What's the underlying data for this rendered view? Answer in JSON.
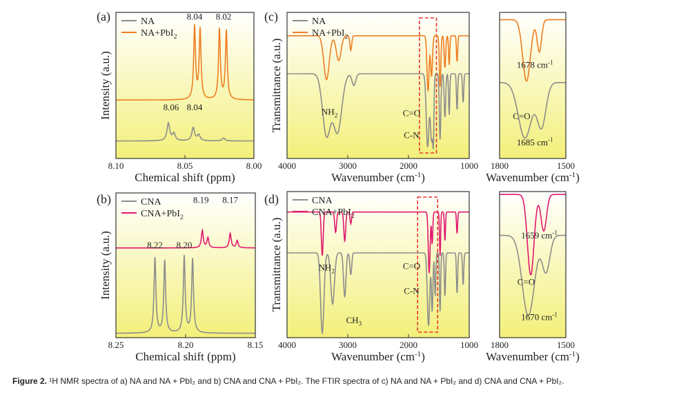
{
  "figure": {
    "caption_label": "Figure 2.",
    "caption_text": "¹H NMR spectra of a) NA and NA + PbI₂ and b) CNA and CNA + PbI₂. The FTIR spectra of c) NA and NA + PbI₂ and d) CNA and CNA + PbI₂."
  },
  "colors": {
    "orange": "#EE7D22",
    "magenta": "#E0186E",
    "gray": "#8C8C8C",
    "grad_top": "#FFFFFF",
    "grad_bottom": "#F3F07A",
    "box": "#E8332A"
  },
  "chart_data": [
    {
      "id": "a",
      "panel_label": "(a)",
      "type": "line",
      "xlabel": "Chemical shift (ppm)",
      "ylabel": "Intensity (a.u.)",
      "xlim": [
        8.1,
        8.0
      ],
      "xticks": [
        "8.10",
        "8.05",
        "8.00"
      ],
      "series": [
        {
          "name": "NA",
          "color": "#8C8C8C",
          "baseline": 0.12,
          "peaks": [
            {
              "x": 8.062,
              "h": 0.12,
              "w": 0.0012
            },
            {
              "x": 8.058,
              "h": 0.05,
              "w": 0.0012
            },
            {
              "x": 8.044,
              "h": 0.09,
              "w": 0.0012
            },
            {
              "x": 8.04,
              "h": 0.04,
              "w": 0.0012
            },
            {
              "x": 8.022,
              "h": 0.02,
              "w": 0.0012
            }
          ]
        },
        {
          "name": "NA+PbI2",
          "color": "#EE7D22",
          "baseline": 0.4,
          "peaks": [
            {
              "x": 8.043,
              "h": 0.5,
              "w": 0.0008
            },
            {
              "x": 8.039,
              "h": 0.48,
              "w": 0.0008
            },
            {
              "x": 8.025,
              "h": 0.48,
              "w": 0.0008
            },
            {
              "x": 8.02,
              "h": 0.47,
              "w": 0.0008
            }
          ]
        }
      ],
      "annotations": [
        {
          "text": "8.04",
          "x": 8.043,
          "y": 0.95
        },
        {
          "text": "8.02",
          "x": 8.022,
          "y": 0.95
        },
        {
          "text": "8.06",
          "x": 8.06,
          "y": 0.33
        },
        {
          "text": "8.04",
          "x": 8.043,
          "y": 0.33
        }
      ],
      "legend": [
        {
          "name": "NA",
          "label": "NA",
          "color": "#8C8C8C"
        },
        {
          "name": "NA+PbI2",
          "label": "NA+PbI",
          "sub": "2",
          "color": "#EE7D22"
        }
      ]
    },
    {
      "id": "b",
      "panel_label": "(b)",
      "type": "line",
      "xlabel": "Chemical shift (ppm)",
      "ylabel": "Intensity (a.u.)",
      "xlim": [
        8.25,
        8.15
      ],
      "xticks": [
        "8.25",
        "8.20",
        "8.15"
      ],
      "series": [
        {
          "name": "CNA",
          "color": "#8C8C8C",
          "baseline": 0.03,
          "peaks": [
            {
              "x": 8.222,
              "h": 0.52,
              "w": 0.0008
            },
            {
              "x": 8.215,
              "h": 0.5,
              "w": 0.0008
            },
            {
              "x": 8.201,
              "h": 0.53,
              "w": 0.0008
            },
            {
              "x": 8.195,
              "h": 0.51,
              "w": 0.0008
            }
          ]
        },
        {
          "name": "CNA+PbI2",
          "color": "#E0186E",
          "baseline": 0.62,
          "peaks": [
            {
              "x": 8.188,
              "h": 0.12,
              "w": 0.0008
            },
            {
              "x": 8.184,
              "h": 0.07,
              "w": 0.0008
            },
            {
              "x": 8.168,
              "h": 0.1,
              "w": 0.0008
            },
            {
              "x": 8.163,
              "h": 0.05,
              "w": 0.0008
            }
          ]
        }
      ],
      "annotations": [
        {
          "text": "8.19",
          "x": 8.189,
          "y": 0.93
        },
        {
          "text": "8.17",
          "x": 8.168,
          "y": 0.93
        },
        {
          "text": "8.22",
          "x": 8.222,
          "y": 0.62
        },
        {
          "text": "8.20",
          "x": 8.201,
          "y": 0.62
        }
      ],
      "legend": [
        {
          "name": "CNA",
          "label": "CNA",
          "color": "#8C8C8C"
        },
        {
          "name": "CNA+PbI2",
          "label": "CNA+PbI",
          "sub": "2",
          "color": "#E0186E"
        }
      ]
    },
    {
      "id": "c",
      "panel_label": "(c)",
      "type": "line",
      "xlabel": "Wavenumber (cm",
      "xlabel_sup": "-1",
      "xlabel_end": ")",
      "ylabel": "Transmittance (a.u.)",
      "xlim": [
        4000,
        1000
      ],
      "xticks": [
        "4000",
        "3000",
        "2000",
        "1000"
      ],
      "series": [
        {
          "name": "NA",
          "color": "#8C8C8C",
          "baseline": 0.58,
          "bands": [
            {
              "x": 3350,
              "d": 0.42,
              "w": 130
            },
            {
              "x": 3170,
              "d": 0.4,
              "w": 140
            },
            {
              "x": 2900,
              "d": 0.08,
              "w": 60
            },
            {
              "x": 1685,
              "d": 0.5,
              "w": 45
            },
            {
              "x": 1620,
              "d": 0.45,
              "w": 40
            },
            {
              "x": 1590,
              "d": 0.35,
              "w": 20
            },
            {
              "x": 1480,
              "d": 0.45,
              "w": 25
            },
            {
              "x": 1400,
              "d": 0.3,
              "w": 25
            },
            {
              "x": 1330,
              "d": 0.28,
              "w": 20
            },
            {
              "x": 1200,
              "d": 0.25,
              "w": 20
            },
            {
              "x": 1100,
              "d": 0.2,
              "w": 20
            }
          ]
        },
        {
          "name": "NA+PbI2",
          "color": "#EE7D22",
          "baseline": 0.84,
          "bands": [
            {
              "x": 3350,
              "d": 0.3,
              "w": 90
            },
            {
              "x": 3150,
              "d": 0.17,
              "w": 80
            },
            {
              "x": 2950,
              "d": 0.1,
              "w": 30
            },
            {
              "x": 1678,
              "d": 0.38,
              "w": 35
            },
            {
              "x": 1620,
              "d": 0.28,
              "w": 30
            },
            {
              "x": 1480,
              "d": 0.35,
              "w": 25
            },
            {
              "x": 1400,
              "d": 0.22,
              "w": 25
            },
            {
              "x": 1330,
              "d": 0.2,
              "w": 20
            },
            {
              "x": 1200,
              "d": 0.18,
              "w": 20
            }
          ]
        }
      ],
      "annotations": [
        {
          "text": "NH",
          "sub": "2",
          "x": 3300,
          "y": 0.3
        },
        {
          "text": "C=O",
          "x": 1950,
          "y": 0.29
        },
        {
          "text": "C-N",
          "x": 1950,
          "y": 0.14
        }
      ],
      "highlight_box": [
        1820,
        1540
      ],
      "legend": [
        {
          "name": "NA",
          "label": "NA",
          "color": "#8C8C8C"
        },
        {
          "name": "NA+PbI2",
          "label": "NA+PbI",
          "sub": "2",
          "color": "#EE7D22"
        }
      ]
    },
    {
      "id": "c-zoom",
      "type": "line",
      "xlabel": "Wavenumber (cm",
      "xlabel_sup": "-1",
      "xlabel_end": ")",
      "xlim": [
        1800,
        1500
      ],
      "xticks": [
        "1800",
        "1500"
      ],
      "series": [
        {
          "name": "NA",
          "color": "#8C8C8C",
          "baseline": 0.52,
          "bands": [
            {
              "x": 1685,
              "d": 0.38,
              "w": 60
            },
            {
              "x": 1610,
              "d": 0.3,
              "w": 40
            }
          ]
        },
        {
          "name": "NA+PbI2",
          "color": "#EE7D22",
          "baseline": 0.95,
          "bands": [
            {
              "x": 1678,
              "d": 0.42,
              "w": 35
            },
            {
              "x": 1620,
              "d": 0.22,
              "w": 20
            }
          ]
        }
      ],
      "annotations": [
        {
          "text": "1678 cm",
          "sup": "-1",
          "x": 1640,
          "y": 0.62
        },
        {
          "text": "C=O",
          "x": 1700,
          "y": 0.27
        },
        {
          "text": "1685 cm",
          "sup": "-1",
          "x": 1640,
          "y": 0.09
        }
      ]
    },
    {
      "id": "d",
      "panel_label": "(d)",
      "type": "line",
      "xlabel": "Wavenumber (cm",
      "xlabel_sup": "-1",
      "xlabel_end": ")",
      "ylabel": "Transmittance (a.u.)",
      "xlim": [
        4000,
        1000
      ],
      "xticks": [
        "4000",
        "3000",
        "2000",
        "1000"
      ],
      "series": [
        {
          "name": "CNA",
          "color": "#8C8C8C",
          "baseline": 0.58,
          "bands": [
            {
              "x": 3420,
              "d": 0.55,
              "w": 55
            },
            {
              "x": 3250,
              "d": 0.35,
              "w": 60
            },
            {
              "x": 3050,
              "d": 0.3,
              "w": 40
            },
            {
              "x": 2950,
              "d": 0.15,
              "w": 30
            },
            {
              "x": 1670,
              "d": 0.5,
              "w": 40
            },
            {
              "x": 1610,
              "d": 0.4,
              "w": 25
            },
            {
              "x": 1560,
              "d": 0.3,
              "w": 20
            },
            {
              "x": 1480,
              "d": 0.4,
              "w": 20
            },
            {
              "x": 1400,
              "d": 0.3,
              "w": 20
            },
            {
              "x": 1200,
              "d": 0.28,
              "w": 20
            },
            {
              "x": 1100,
              "d": 0.22,
              "w": 20
            }
          ]
        },
        {
          "name": "CNA+PbI2",
          "color": "#E0186E",
          "baseline": 0.86,
          "bands": [
            {
              "x": 3420,
              "d": 0.3,
              "w": 30
            },
            {
              "x": 3200,
              "d": 0.14,
              "w": 30
            },
            {
              "x": 3050,
              "d": 0.2,
              "w": 30
            },
            {
              "x": 2950,
              "d": 0.08,
              "w": 25
            },
            {
              "x": 1659,
              "d": 0.42,
              "w": 30
            },
            {
              "x": 1610,
              "d": 0.22,
              "w": 20
            },
            {
              "x": 1480,
              "d": 0.3,
              "w": 18
            },
            {
              "x": 1400,
              "d": 0.2,
              "w": 18
            },
            {
              "x": 1200,
              "d": 0.15,
              "w": 18
            }
          ]
        }
      ],
      "annotations": [
        {
          "text": "NH",
          "sub": "2",
          "x": 3350,
          "y": 0.46
        },
        {
          "text": "C=O",
          "x": 1950,
          "y": 0.47
        },
        {
          "text": "C-N",
          "x": 1950,
          "y": 0.3
        },
        {
          "text": "CH",
          "sub": "3",
          "x": 2900,
          "y": 0.1
        }
      ],
      "highlight_box": [
        1850,
        1520
      ],
      "legend": [
        {
          "name": "CNA",
          "label": "CNA",
          "color": "#8C8C8C"
        },
        {
          "name": "CNA+PbI2",
          "label": "CNA+PbI",
          "sub": "2",
          "color": "#E0186E"
        }
      ]
    },
    {
      "id": "d-zoom",
      "type": "line",
      "xlabel": "Wavenumber (cm",
      "xlabel_sup": "-1",
      "xlabel_end": ")",
      "xlim": [
        1800,
        1500
      ],
      "xticks": [
        "1800",
        "1500"
      ],
      "series": [
        {
          "name": "CNA",
          "color": "#8C8C8C",
          "baseline": 0.7,
          "bands": [
            {
              "x": 1670,
              "d": 0.55,
              "w": 55
            },
            {
              "x": 1590,
              "d": 0.25,
              "w": 35
            }
          ]
        },
        {
          "name": "CNA+PbI2",
          "color": "#E0186E",
          "baseline": 0.98,
          "bands": [
            {
              "x": 1659,
              "d": 0.55,
              "w": 30
            },
            {
              "x": 1600,
              "d": 0.25,
              "w": 25
            }
          ]
        }
      ],
      "annotations": [
        {
          "text": "1659 cm",
          "sup": "-1",
          "x": 1620,
          "y": 0.68
        },
        {
          "text": "C=O",
          "x": 1680,
          "y": 0.36
        },
        {
          "text": "1670 cm",
          "sup": "-1",
          "x": 1620,
          "y": 0.12
        }
      ]
    }
  ]
}
